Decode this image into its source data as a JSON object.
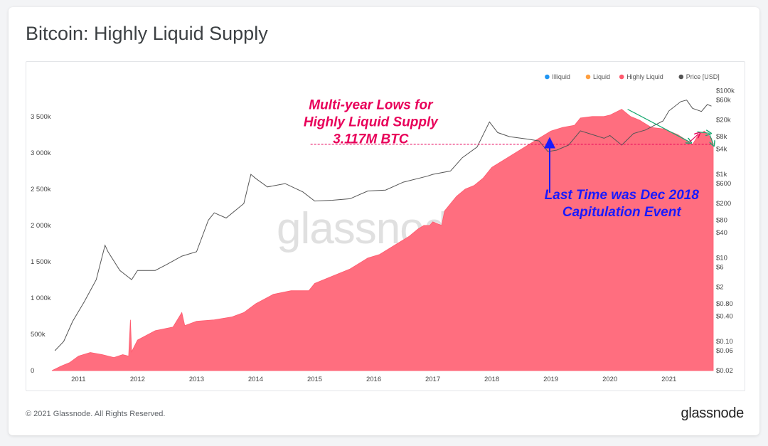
{
  "title": "Bitcoin: Highly Liquid Supply",
  "footer": {
    "copyright": "© 2021 Glassnode. All Rights Reserved.",
    "logo": "glassnode"
  },
  "watermark": "glassnode",
  "colors": {
    "illiquid": "#2196f3",
    "liquid": "#ff9f40",
    "highly_liquid": "#ff5a6e",
    "highly_liquid_fill": "#ff6e7f",
    "price": "#555555",
    "annotation_pink": "#e8005a",
    "annotation_blue": "#1a1aff",
    "arrow_green": "#18a870"
  },
  "chart_data": {
    "type": "area",
    "title": "Bitcoin: Highly Liquid Supply",
    "legend": {
      "placement": "top-right",
      "items": [
        {
          "name": "Illiquid",
          "color": "#2196f3",
          "active": false
        },
        {
          "name": "Liquid",
          "color": "#ff9f40",
          "active": false
        },
        {
          "name": "Highly Liquid",
          "color": "#ff5a6e",
          "active": true
        },
        {
          "name": "Price [USD]",
          "color": "#555555",
          "active": true
        }
      ]
    },
    "x_range": [
      2010.55,
      2021.75
    ],
    "x_ticks": [
      "2011",
      "2012",
      "2013",
      "2014",
      "2015",
      "2016",
      "2017",
      "2018",
      "2019",
      "2020",
      "2021"
    ],
    "y_left": {
      "range": [
        0,
        3900000
      ],
      "ticks": [
        0,
        500000,
        1000000,
        1500000,
        2000000,
        2500000,
        3000000,
        3500000
      ],
      "tick_labels": [
        "0",
        "500k",
        "1 000k",
        "1 500k",
        "2 000k",
        "2 500k",
        "3 000k",
        "3 500k"
      ]
    },
    "y_right": {
      "scale": "log",
      "range": [
        0.02,
        120000
      ],
      "ticks": [
        0.02,
        0.06,
        0.1,
        0.4,
        0.8,
        2,
        6,
        10,
        40,
        80,
        200,
        600,
        1000,
        4000,
        8000,
        20000,
        60000,
        100000
      ],
      "tick_labels": [
        "$0.02",
        "$0.06",
        "$0.10",
        "$0.40",
        "$0.80",
        "$2",
        "$6",
        "$10",
        "$40",
        "$80",
        "$200",
        "$600",
        "$1k",
        "$4k",
        "$8k",
        "$20k",
        "$60k",
        "$100k"
      ]
    },
    "series": [
      {
        "name": "Highly Liquid",
        "axis": "left",
        "type": "area",
        "points": [
          [
            2010.55,
            0
          ],
          [
            2010.6,
            20000
          ],
          [
            2010.7,
            60000
          ],
          [
            2010.85,
            110000
          ],
          [
            2011.0,
            200000
          ],
          [
            2011.2,
            250000
          ],
          [
            2011.4,
            220000
          ],
          [
            2011.6,
            180000
          ],
          [
            2011.75,
            220000
          ],
          [
            2011.85,
            200000
          ],
          [
            2011.88,
            700000
          ],
          [
            2011.9,
            260000
          ],
          [
            2012.0,
            420000
          ],
          [
            2012.3,
            550000
          ],
          [
            2012.6,
            600000
          ],
          [
            2012.75,
            800000
          ],
          [
            2012.8,
            620000
          ],
          [
            2013.0,
            680000
          ],
          [
            2013.3,
            700000
          ],
          [
            2013.6,
            740000
          ],
          [
            2013.8,
            800000
          ],
          [
            2014.0,
            920000
          ],
          [
            2014.3,
            1050000
          ],
          [
            2014.6,
            1100000
          ],
          [
            2014.9,
            1100000
          ],
          [
            2015.0,
            1200000
          ],
          [
            2015.3,
            1300000
          ],
          [
            2015.6,
            1400000
          ],
          [
            2015.9,
            1550000
          ],
          [
            2016.1,
            1600000
          ],
          [
            2016.4,
            1750000
          ],
          [
            2016.6,
            1850000
          ],
          [
            2016.75,
            1950000
          ],
          [
            2016.85,
            2000000
          ],
          [
            2016.95,
            2000000
          ],
          [
            2017.0,
            2050000
          ],
          [
            2017.15,
            2000000
          ],
          [
            2017.2,
            2200000
          ],
          [
            2017.4,
            2400000
          ],
          [
            2017.55,
            2500000
          ],
          [
            2017.7,
            2550000
          ],
          [
            2017.85,
            2650000
          ],
          [
            2018.0,
            2800000
          ],
          [
            2018.2,
            2900000
          ],
          [
            2018.5,
            3050000
          ],
          [
            2018.7,
            3150000
          ],
          [
            2018.9,
            3250000
          ],
          [
            2019.0,
            3300000
          ],
          [
            2019.2,
            3350000
          ],
          [
            2019.4,
            3380000
          ],
          [
            2019.5,
            3480000
          ],
          [
            2019.7,
            3500000
          ],
          [
            2019.9,
            3500000
          ],
          [
            2020.0,
            3520000
          ],
          [
            2020.2,
            3600000
          ],
          [
            2020.35,
            3500000
          ],
          [
            2020.5,
            3450000
          ],
          [
            2020.7,
            3350000
          ],
          [
            2020.9,
            3330000
          ],
          [
            2021.0,
            3300000
          ],
          [
            2021.15,
            3250000
          ],
          [
            2021.3,
            3170000
          ],
          [
            2021.4,
            3117000
          ],
          [
            2021.5,
            3250000
          ],
          [
            2021.6,
            3300000
          ],
          [
            2021.72,
            3200000
          ],
          [
            2021.75,
            3117000
          ]
        ]
      },
      {
        "name": "Price [USD]",
        "axis": "right",
        "type": "line",
        "points": [
          [
            2010.6,
            0.06
          ],
          [
            2010.75,
            0.1
          ],
          [
            2010.9,
            0.3
          ],
          [
            2011.1,
            0.9
          ],
          [
            2011.3,
            3
          ],
          [
            2011.45,
            20
          ],
          [
            2011.5,
            14
          ],
          [
            2011.7,
            5
          ],
          [
            2011.9,
            3
          ],
          [
            2012.0,
            5
          ],
          [
            2012.3,
            5
          ],
          [
            2012.5,
            7
          ],
          [
            2012.75,
            11
          ],
          [
            2013.0,
            14
          ],
          [
            2013.2,
            80
          ],
          [
            2013.3,
            120
          ],
          [
            2013.5,
            90
          ],
          [
            2013.8,
            200
          ],
          [
            2013.92,
            1000
          ],
          [
            2014.0,
            800
          ],
          [
            2014.2,
            500
          ],
          [
            2014.5,
            600
          ],
          [
            2014.8,
            380
          ],
          [
            2015.0,
            230
          ],
          [
            2015.3,
            240
          ],
          [
            2015.6,
            260
          ],
          [
            2015.9,
            400
          ],
          [
            2016.2,
            420
          ],
          [
            2016.5,
            650
          ],
          [
            2016.9,
            900
          ],
          [
            2017.0,
            1000
          ],
          [
            2017.3,
            1200
          ],
          [
            2017.5,
            2500
          ],
          [
            2017.75,
            4500
          ],
          [
            2017.96,
            18000
          ],
          [
            2018.1,
            10000
          ],
          [
            2018.3,
            8000
          ],
          [
            2018.6,
            7000
          ],
          [
            2018.8,
            6300
          ],
          [
            2018.95,
            3500
          ],
          [
            2019.1,
            3800
          ],
          [
            2019.3,
            5000
          ],
          [
            2019.5,
            11000
          ],
          [
            2019.7,
            9000
          ],
          [
            2019.9,
            7300
          ],
          [
            2020.0,
            8500
          ],
          [
            2020.2,
            5000
          ],
          [
            2020.4,
            9500
          ],
          [
            2020.6,
            11500
          ],
          [
            2020.9,
            19000
          ],
          [
            2021.0,
            33000
          ],
          [
            2021.2,
            55000
          ],
          [
            2021.3,
            60000
          ],
          [
            2021.4,
            38000
          ],
          [
            2021.55,
            32000
          ],
          [
            2021.65,
            47000
          ],
          [
            2021.72,
            43000
          ]
        ]
      }
    ],
    "reference_line": {
      "value": 3117000,
      "axis": "left",
      "label": "3.117M BTC",
      "x_start": 2014.93,
      "color": "#e8005a"
    },
    "annotations": [
      {
        "lines": [
          "Multi-year Lows for",
          "Highly Liquid Supply",
          "3.117M BTC"
        ],
        "color": "#e8005a",
        "anchor_x": 2015.95,
        "anchor_y": 3600000
      },
      {
        "lines": [
          "Last Time was Dec 2018",
          "Capitulation Event"
        ],
        "color": "#1a1aff",
        "anchor_x": 2020.2,
        "anchor_y": 2360000
      }
    ],
    "arrows": [
      {
        "color": "#1a1aff",
        "from": [
          2018.98,
          2450000
        ],
        "to": [
          2018.98,
          3140000
        ]
      },
      {
        "color": "#18a870",
        "from": [
          2020.3,
          3600000
        ],
        "to": [
          2021.35,
          3150000
        ]
      },
      {
        "color": "#e8005a",
        "from": [
          2021.35,
          3150000
        ],
        "to": [
          2021.5,
          3260000
        ]
      },
      {
        "color": "#18a870",
        "from": [
          2021.48,
          3290000
        ],
        "to": [
          2021.68,
          3270000
        ]
      },
      {
        "color": "#18a870",
        "from": [
          2021.68,
          3270000
        ],
        "to": [
          2021.75,
          3120000
        ]
      }
    ]
  }
}
